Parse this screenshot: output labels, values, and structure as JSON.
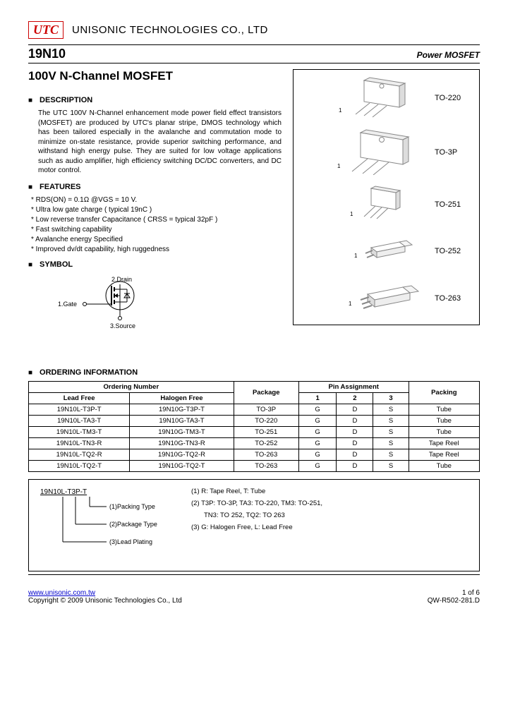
{
  "header": {
    "logo_text": "UTC",
    "company": "UNISONIC TECHNOLOGIES CO., LTD"
  },
  "title_row": {
    "part_no": "19N10",
    "subtitle": "Power MOSFET"
  },
  "product_title": "100V N-Channel MOSFET",
  "sections": {
    "description_h": "DESCRIPTION",
    "description_body": "The UTC 100V N-Channel enhancement mode power field effect transistors (MOSFET) are produced by UTC's planar stripe, DMOS technology which has been tailored especially in the avalanche and commutation mode to minimize on-state resistance, provide superior switching performance, and withstand high energy pulse. They are suited for low voltage applications such as audio amplifier, high efficiency switching DC/DC converters, and DC motor control.",
    "features_h": "FEATURES",
    "features": [
      "RDS(ON) = 0.1Ω @VGS = 10 V.",
      "Ultra low gate charge ( typical 19nC )",
      "Low reverse transfer Capacitance ( CRSS = typical 32pF )",
      "Fast switching capability",
      "Avalanche energy Specified",
      "Improved dv/dt capability, high ruggedness"
    ],
    "symbol_h": "SYMBOL",
    "ordering_h": "ORDERING INFORMATION"
  },
  "symbol": {
    "pin1": "1.Gate",
    "pin2": "2.Drain",
    "pin3": "3.Source"
  },
  "packages": [
    {
      "label": "TO-220"
    },
    {
      "label": "TO-3P"
    },
    {
      "label": "TO-251"
    },
    {
      "label": "TO-252"
    },
    {
      "label": "TO-263"
    }
  ],
  "ordering": {
    "headers": {
      "ordering_number": "Ordering Number",
      "lead_free": "Lead Free",
      "halogen_free": "Halogen Free",
      "package": "Package",
      "pin_assignment": "Pin Assignment",
      "p1": "1",
      "p2": "2",
      "p3": "3",
      "packing": "Packing"
    },
    "rows": [
      {
        "lf": "19N10L-T3P-T",
        "hf": "19N10G-T3P-T",
        "pkg": "TO-3P",
        "p1": "G",
        "p2": "D",
        "p3": "S",
        "pack": "Tube"
      },
      {
        "lf": "19N10L-TA3-T",
        "hf": "19N10G-TA3-T",
        "pkg": "TO-220",
        "p1": "G",
        "p2": "D",
        "p3": "S",
        "pack": "Tube"
      },
      {
        "lf": "19N10L-TM3-T",
        "hf": "19N10G-TM3-T",
        "pkg": "TO-251",
        "p1": "G",
        "p2": "D",
        "p3": "S",
        "pack": "Tube"
      },
      {
        "lf": "19N10L-TN3-R",
        "hf": "19N10G-TN3-R",
        "pkg": "TO-252",
        "p1": "G",
        "p2": "D",
        "p3": "S",
        "pack": "Tape Reel"
      },
      {
        "lf": "19N10L-TQ2-R",
        "hf": "19N10G-TQ2-R",
        "pkg": "TO-263",
        "p1": "G",
        "p2": "D",
        "p3": "S",
        "pack": "Tape Reel"
      },
      {
        "lf": "19N10L-TQ2-T",
        "hf": "19N10G-TQ2-T",
        "pkg": "TO-263",
        "p1": "G",
        "p2": "D",
        "p3": "S",
        "pack": "Tube"
      }
    ]
  },
  "legend": {
    "example": "19N10L-T3P-T",
    "l1": "(1)Packing Type",
    "l2": "(2)Package Type",
    "l3": "(3)Lead Plating",
    "r1": "(1) R: Tape Reel, T: Tube",
    "r2": "(2) T3P: TO-3P, TA3: TO-220, TM3: TO-251,",
    "r2b": "TN3: TO 252, TQ2: TO 263",
    "r3": "(3) G: Halogen Free, L: Lead Free"
  },
  "footer": {
    "url": "www.unisonic.com.tw",
    "copyright": "Copyright © 2009 Unisonic Technologies Co., Ltd",
    "page": "1 of 6",
    "doc": "QW-R502-281.D"
  },
  "colors": {
    "logo": "#cc0000",
    "link": "#0000cc",
    "text": "#000000",
    "bg": "#ffffff"
  }
}
